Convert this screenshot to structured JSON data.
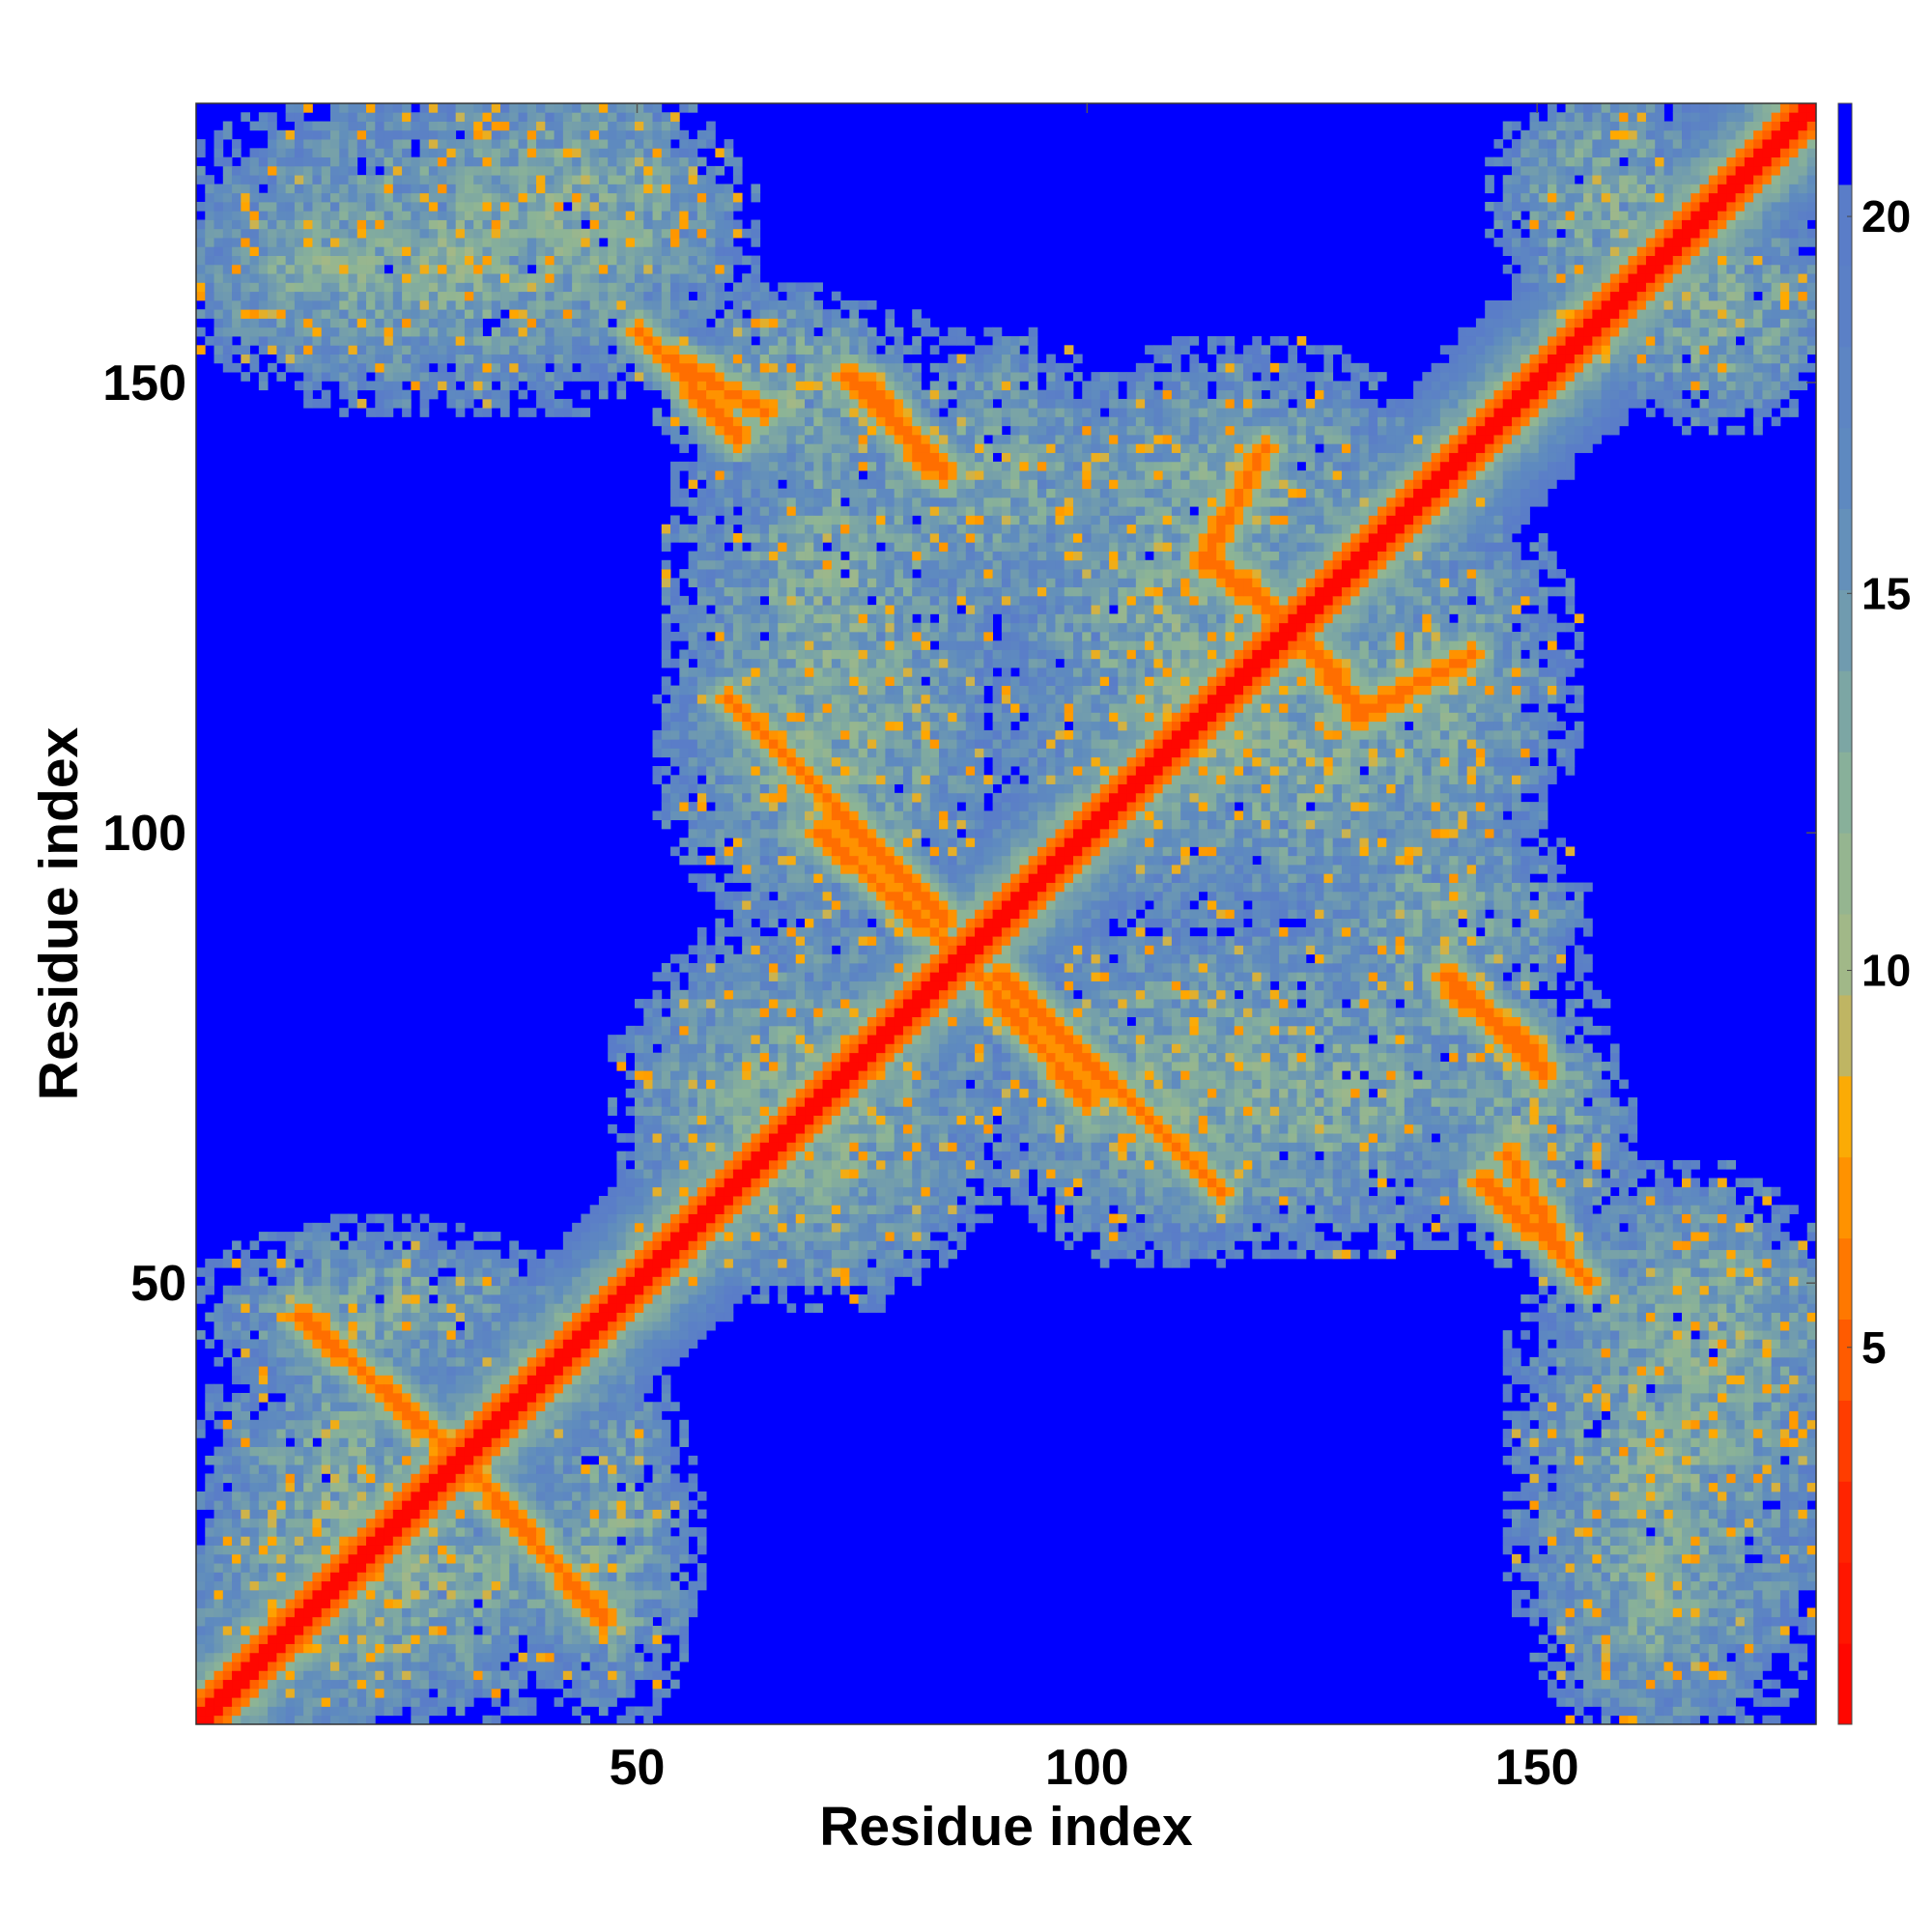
{
  "chart_data": {
    "type": "heatmap",
    "title": "",
    "xlabel": "Residue index",
    "ylabel": "Residue index",
    "xlim": [
      1,
      181
    ],
    "ylim": [
      1,
      181
    ],
    "xticks": [
      50,
      100,
      150
    ],
    "yticks": [
      50,
      100,
      150
    ],
    "colorbar": {
      "ticks": [
        5,
        10,
        15,
        20
      ],
      "range": [
        0,
        21.5
      ],
      "colors": {
        "low": "#ff0000",
        "mid_low": "#ff6a00",
        "mid": "#ffa500",
        "mid_high": "#9fb987",
        "high": "#5b87c7",
        "background": "#0000ff"
      }
    },
    "symmetric": true,
    "diagonal_band_width": 3,
    "contact_regions": [
      {
        "x": [
          1,
          48
        ],
        "y": [
          4,
          30
        ],
        "value": 15.5
      },
      {
        "x": [
          4,
          38
        ],
        "y": [
          40,
          54
        ],
        "value": 15.5
      },
      {
        "x": [
          1,
          30
        ],
        "y": [
          154,
          172
        ],
        "value": 15.5
      },
      {
        "x": [
          28,
          58
        ],
        "y": [
          158,
          181
        ],
        "value": 15.0
      },
      {
        "x": [
          55,
          78
        ],
        "y": [
          142,
          158
        ],
        "value": 15.0
      },
      {
        "x": [
          55,
          88
        ],
        "y": [
          93,
          125
        ],
        "value": 15.5
      },
      {
        "x": [
          80,
          100
        ],
        "y": [
          128,
          153
        ],
        "value": 15.5
      },
      {
        "x": [
          100,
          135
        ],
        "y": [
          126,
          152
        ],
        "value": 15.5
      },
      {
        "x": [
          95,
          148
        ],
        "y": [
          93,
          125
        ],
        "value": 15.5
      },
      {
        "x": [
          52,
          86
        ],
        "y": [
          50,
          88
        ],
        "value": 15.5
      },
      {
        "x": [
          90,
          155
        ],
        "y": [
          56,
          88
        ],
        "value": 15.5
      },
      {
        "x": [
          150,
          181
        ],
        "y": [
          1,
          60
        ],
        "value": 15.5
      },
      {
        "x": [
          148,
          168
        ],
        "y": [
          160,
          181
        ],
        "value": 15.0
      }
    ],
    "strong_contacts": [
      {
        "from": [
          60,
          115
        ],
        "to": [
          84,
          90
        ],
        "value": 6.5
      },
      {
        "from": [
          86,
          86
        ],
        "to": [
          100,
          70
        ],
        "value": 6.5
      },
      {
        "from": [
          53,
          153
        ],
        "to": [
          64,
          147
        ],
        "value": 6.5
      },
      {
        "from": [
          76,
          150
        ],
        "to": [
          82,
          141
        ],
        "value": 6.5
      },
      {
        "from": [
          118,
          128
        ],
        "to": [
          130,
          114
        ],
        "value": 6.5
      },
      {
        "from": [
          113,
          130
        ],
        "to": [
          120,
          143
        ],
        "value": 6.5
      },
      {
        "from": [
          140,
          84
        ],
        "to": [
          151,
          73
        ],
        "value": 6.5
      },
      {
        "from": [
          144,
          61
        ],
        "to": [
          156,
          50
        ],
        "value": 6.5
      },
      {
        "from": [
          30,
          30
        ],
        "to": [
          46,
          12
        ],
        "value": 6.5
      }
    ]
  }
}
